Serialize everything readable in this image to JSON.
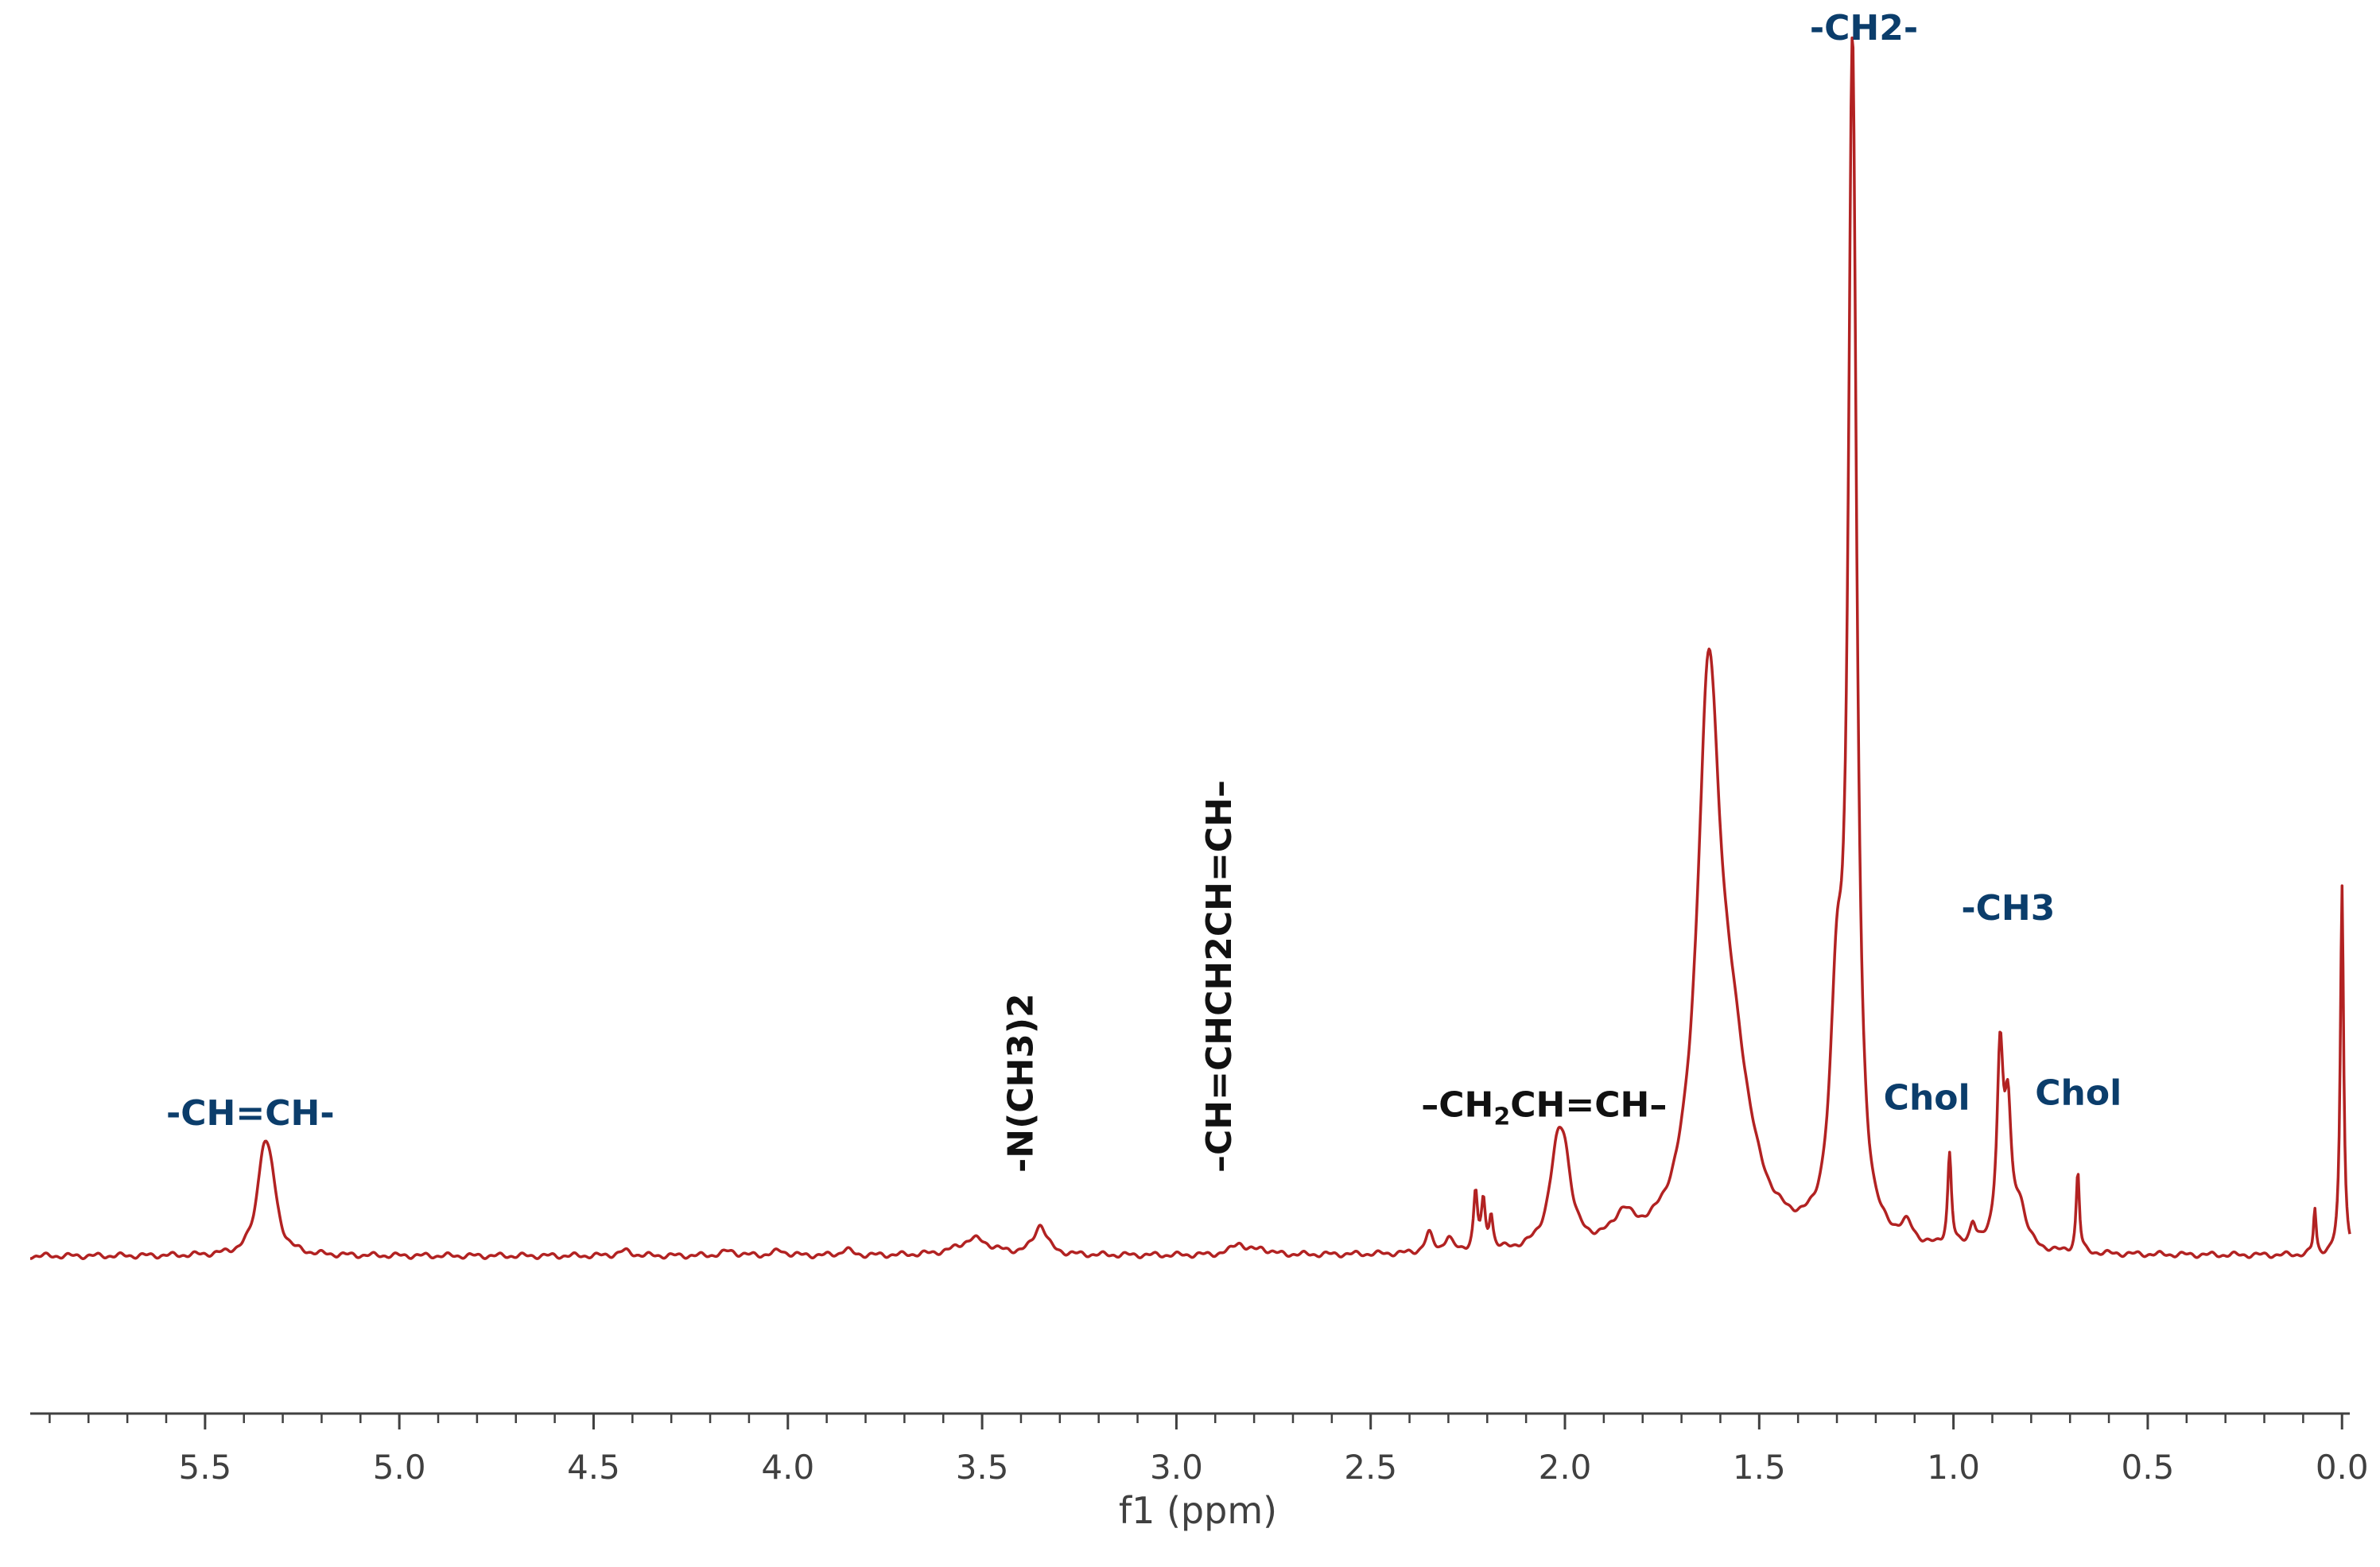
{
  "chart_data": {
    "type": "line",
    "title": "",
    "xlabel": "f1 (ppm)",
    "ylabel": "",
    "x_reversed": true,
    "xlim": [
      5.95,
      -0.02
    ],
    "ylim": [
      -0.02,
      1.0
    ],
    "x_ticks": [
      5.5,
      5.0,
      4.5,
      4.0,
      3.5,
      3.0,
      2.5,
      2.0,
      1.5,
      1.0,
      0.5,
      0.0
    ],
    "x_tick_labels": [
      "5.5",
      "5.0",
      "4.5",
      "4.0",
      "3.5",
      "3.0",
      "2.5",
      "2.0",
      "1.5",
      "1.0",
      "0.5",
      "0.0"
    ],
    "grid": false,
    "line_color": "#b22222",
    "peaks": [
      {
        "ppm": 5.35,
        "height": 0.072,
        "width": 0.02
      },
      {
        "ppm": 5.33,
        "height": 0.045,
        "width": 0.02
      },
      {
        "ppm": 3.52,
        "height": 0.014,
        "width": 0.05
      },
      {
        "ppm": 3.35,
        "height": 0.025,
        "width": 0.02
      },
      {
        "ppm": 2.84,
        "height": 0.01,
        "width": 0.02
      },
      {
        "ppm": 2.78,
        "height": 0.005,
        "width": 0.02
      },
      {
        "ppm": 4.42,
        "height": 0.004,
        "width": 0.02
      },
      {
        "ppm": 4.15,
        "height": 0.004,
        "width": 0.02
      },
      {
        "ppm": 4.02,
        "height": 0.004,
        "width": 0.02
      },
      {
        "ppm": 3.85,
        "height": 0.005,
        "width": 0.015
      },
      {
        "ppm": 2.35,
        "height": 0.016,
        "width": 0.012
      },
      {
        "ppm": 2.3,
        "height": 0.012,
        "width": 0.012
      },
      {
        "ppm": 2.23,
        "height": 0.048,
        "width": 0.006
      },
      {
        "ppm": 2.21,
        "height": 0.038,
        "width": 0.006
      },
      {
        "ppm": 2.19,
        "height": 0.028,
        "width": 0.006
      },
      {
        "ppm": 2.02,
        "height": 0.07,
        "width": 0.025
      },
      {
        "ppm": 2.0,
        "height": 0.05,
        "width": 0.02
      },
      {
        "ppm": 1.85,
        "height": 0.022,
        "width": 0.03
      },
      {
        "ppm": 1.63,
        "height": 0.44,
        "width": 0.035
      },
      {
        "ppm": 1.57,
        "height": 0.13,
        "width": 0.06
      },
      {
        "ppm": 1.26,
        "height": 0.98,
        "width": 0.013
      },
      {
        "ppm": 1.3,
        "height": 0.18,
        "width": 0.02
      },
      {
        "ppm": 1.12,
        "height": 0.015,
        "width": 0.02
      },
      {
        "ppm": 1.01,
        "height": 0.078,
        "width": 0.006
      },
      {
        "ppm": 0.95,
        "height": 0.02,
        "width": 0.01
      },
      {
        "ppm": 0.88,
        "height": 0.16,
        "width": 0.01
      },
      {
        "ppm": 0.86,
        "height": 0.1,
        "width": 0.01
      },
      {
        "ppm": 0.83,
        "height": 0.035,
        "width": 0.02
      },
      {
        "ppm": 0.68,
        "height": 0.068,
        "width": 0.005
      },
      {
        "ppm": 0.07,
        "height": 0.038,
        "width": 0.004
      },
      {
        "ppm": 0.0,
        "height": 0.31,
        "width": 0.005
      }
    ],
    "annotations": [
      {
        "text": "-CH=CH-",
        "ppm": 5.6,
        "y": 0.11,
        "rotate": false,
        "color": "#0b3d6b"
      },
      {
        "text": "-N(CH3)2",
        "ppm": 3.37,
        "y": 0.07,
        "rotate": true,
        "color": "#111111"
      },
      {
        "text": "–CH=CHCH2CH=CH–",
        "ppm": 2.86,
        "y": 0.07,
        "rotate": true,
        "color": "#111111"
      },
      {
        "text_main": "–CH",
        "text_sub": "2",
        "text_tail": "CH=CH–",
        "ppm": 2.37,
        "y": 0.117,
        "rotate": false,
        "color": "#111111"
      },
      {
        "text": "-CH2-",
        "ppm": 1.37,
        "y": 1.02,
        "rotate": false,
        "color": "#0b3d6b"
      },
      {
        "text": "-CH3",
        "ppm": 0.98,
        "y": 0.282,
        "rotate": false,
        "color": "#0b3d6b"
      },
      {
        "text": "Chol",
        "ppm": 1.18,
        "y": 0.123,
        "rotate": false,
        "color": "#0b3d6b"
      },
      {
        "text": "Chol",
        "ppm": 0.79,
        "y": 0.127,
        "rotate": false,
        "color": "#0b3d6b"
      }
    ]
  }
}
